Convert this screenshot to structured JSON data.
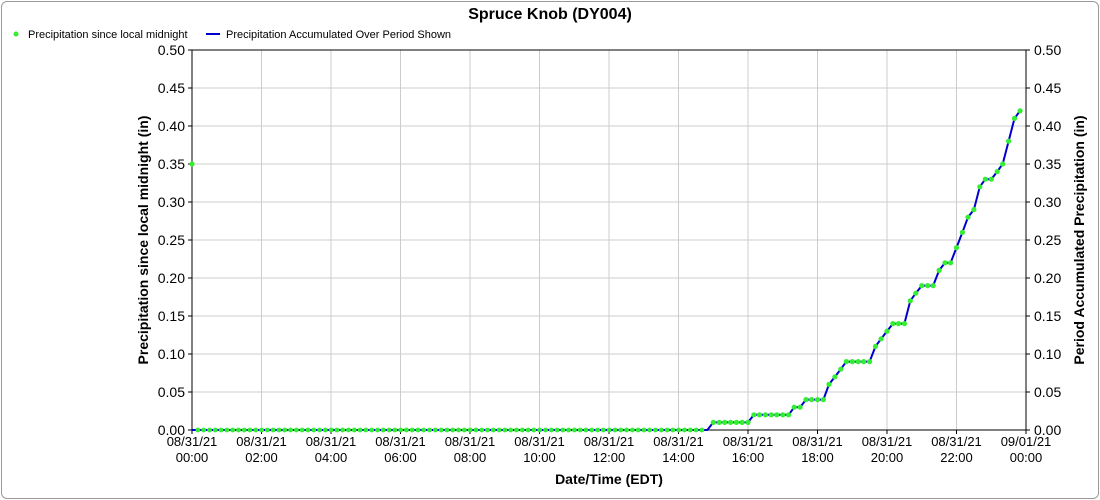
{
  "chart_data": {
    "type": "line",
    "title": "Spruce Knob (DY004)",
    "xlabel": "Date/Time (EDT)",
    "ylabel_left": "Precipitation since local midnight (in)",
    "ylabel_right": "Period Accumulated Precipitation (in)",
    "ylim": [
      0,
      0.5
    ],
    "yticks": [
      "0.00",
      "0.05",
      "0.10",
      "0.15",
      "0.20",
      "0.25",
      "0.30",
      "0.35",
      "0.40",
      "0.45",
      "0.50"
    ],
    "xlim_hours": [
      0,
      24
    ],
    "xticks": [
      {
        "date": "08/31/21",
        "time": "00:00"
      },
      {
        "date": "08/31/21",
        "time": "02:00"
      },
      {
        "date": "08/31/21",
        "time": "04:00"
      },
      {
        "date": "08/31/21",
        "time": "06:00"
      },
      {
        "date": "08/31/21",
        "time": "08:00"
      },
      {
        "date": "08/31/21",
        "time": "10:00"
      },
      {
        "date": "08/31/21",
        "time": "12:00"
      },
      {
        "date": "08/31/21",
        "time": "14:00"
      },
      {
        "date": "08/31/21",
        "time": "16:00"
      },
      {
        "date": "08/31/21",
        "time": "18:00"
      },
      {
        "date": "08/31/21",
        "time": "20:00"
      },
      {
        "date": "08/31/21",
        "time": "22:00"
      },
      {
        "date": "09/01/21",
        "time": "00:00"
      }
    ],
    "grid": true,
    "legend_placement": "top-left",
    "series": [
      {
        "name": "Precipitation since local midnight",
        "style": "points",
        "color": "#33ee33",
        "points": [
          [
            0,
            0.35
          ],
          [
            15.0,
            0.01
          ],
          [
            15.17,
            0.01
          ],
          [
            15.33,
            0.01
          ],
          [
            15.5,
            0.01
          ],
          [
            15.67,
            0.01
          ],
          [
            15.83,
            0.01
          ],
          [
            16.0,
            0.01
          ],
          [
            16.17,
            0.02
          ],
          [
            16.33,
            0.02
          ],
          [
            16.5,
            0.02
          ],
          [
            16.67,
            0.02
          ],
          [
            16.83,
            0.02
          ],
          [
            17.0,
            0.02
          ],
          [
            17.17,
            0.02
          ],
          [
            17.33,
            0.03
          ],
          [
            17.5,
            0.03
          ],
          [
            17.67,
            0.04
          ],
          [
            17.83,
            0.04
          ],
          [
            18.0,
            0.04
          ],
          [
            18.17,
            0.04
          ],
          [
            18.33,
            0.06
          ],
          [
            18.5,
            0.07
          ],
          [
            18.67,
            0.08
          ],
          [
            18.83,
            0.09
          ],
          [
            19.0,
            0.09
          ],
          [
            19.17,
            0.09
          ],
          [
            19.33,
            0.09
          ],
          [
            19.5,
            0.09
          ],
          [
            19.67,
            0.11
          ],
          [
            19.83,
            0.12
          ],
          [
            20.0,
            0.13
          ],
          [
            20.17,
            0.14
          ],
          [
            20.33,
            0.14
          ],
          [
            20.5,
            0.14
          ],
          [
            20.67,
            0.17
          ],
          [
            20.83,
            0.18
          ],
          [
            21.0,
            0.19
          ],
          [
            21.17,
            0.19
          ],
          [
            21.33,
            0.19
          ],
          [
            21.5,
            0.21
          ],
          [
            21.67,
            0.22
          ],
          [
            21.83,
            0.22
          ],
          [
            22.0,
            0.24
          ],
          [
            22.17,
            0.26
          ],
          [
            22.33,
            0.28
          ],
          [
            22.5,
            0.29
          ],
          [
            22.67,
            0.32
          ],
          [
            22.83,
            0.33
          ],
          [
            23.0,
            0.33
          ],
          [
            23.17,
            0.34
          ],
          [
            23.33,
            0.35
          ],
          [
            23.5,
            0.38
          ],
          [
            23.67,
            0.41
          ],
          [
            23.83,
            0.42
          ]
        ]
      },
      {
        "name": "Precipitation Accumulated Over Period Shown",
        "style": "line",
        "color": "#0000cc",
        "points": [
          [
            0,
            0.0
          ],
          [
            14.83,
            0.0
          ],
          [
            15.0,
            0.01
          ],
          [
            16.0,
            0.01
          ],
          [
            16.17,
            0.02
          ],
          [
            17.17,
            0.02
          ],
          [
            17.33,
            0.03
          ],
          [
            17.5,
            0.03
          ],
          [
            17.67,
            0.04
          ],
          [
            18.17,
            0.04
          ],
          [
            18.33,
            0.06
          ],
          [
            18.5,
            0.07
          ],
          [
            18.67,
            0.08
          ],
          [
            18.83,
            0.09
          ],
          [
            19.5,
            0.09
          ],
          [
            19.67,
            0.11
          ],
          [
            19.83,
            0.12
          ],
          [
            20.0,
            0.13
          ],
          [
            20.17,
            0.14
          ],
          [
            20.5,
            0.14
          ],
          [
            20.67,
            0.17
          ],
          [
            20.83,
            0.18
          ],
          [
            21.0,
            0.19
          ],
          [
            21.33,
            0.19
          ],
          [
            21.5,
            0.21
          ],
          [
            21.67,
            0.22
          ],
          [
            21.83,
            0.22
          ],
          [
            22.0,
            0.24
          ],
          [
            22.17,
            0.26
          ],
          [
            22.33,
            0.28
          ],
          [
            22.5,
            0.29
          ],
          [
            22.67,
            0.32
          ],
          [
            22.83,
            0.33
          ],
          [
            23.0,
            0.33
          ],
          [
            23.17,
            0.34
          ],
          [
            23.33,
            0.35
          ],
          [
            23.5,
            0.38
          ],
          [
            23.67,
            0.41
          ],
          [
            23.83,
            0.42
          ]
        ]
      }
    ],
    "flat_points_series": {
      "name": "Precipitation since local midnight",
      "value": 0.0,
      "from_hour": 0.17,
      "to_hour": 14.83,
      "step_hours": 0.1667
    }
  }
}
